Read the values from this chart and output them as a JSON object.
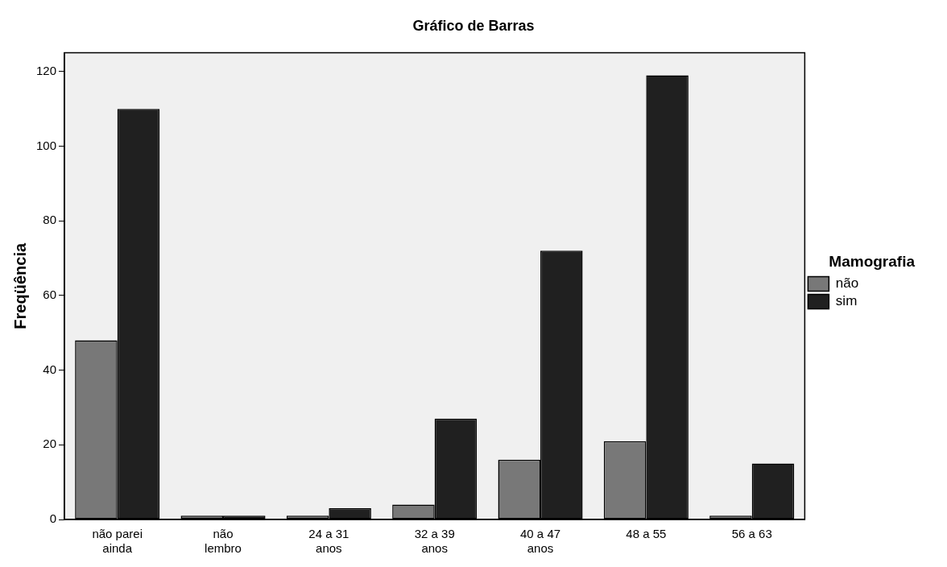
{
  "chart_data": {
    "type": "bar",
    "title": "Gráfico de Barras",
    "ylabel": "Freqüência",
    "legend_title": "Mamografia",
    "categories": [
      "não parei ainda",
      "não lembro",
      "24 a 31 anos",
      "32 a 39 anos",
      "40 a 47 anos",
      "48 a 55",
      "56 a 63"
    ],
    "series": [
      {
        "name": "não",
        "color": "#787878",
        "values": [
          48,
          1,
          1,
          4,
          16,
          21,
          1
        ]
      },
      {
        "name": "sim",
        "color": "#202020",
        "values": [
          110,
          1,
          3,
          27,
          72,
          119,
          15
        ]
      }
    ],
    "ylim": [
      0,
      125
    ],
    "yticks": [
      0,
      20,
      40,
      60,
      80,
      100,
      120
    ],
    "grid": false,
    "legend": "right"
  }
}
